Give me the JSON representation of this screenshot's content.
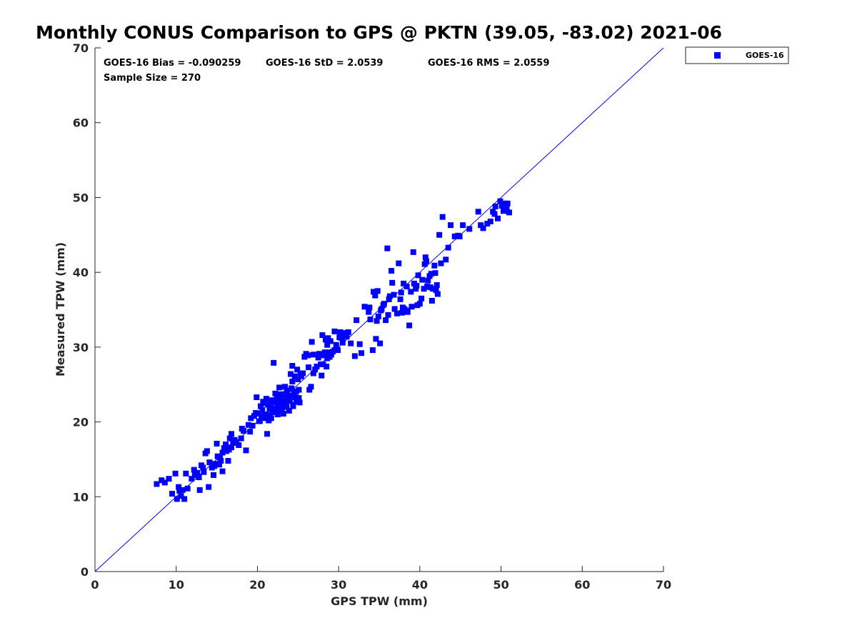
{
  "chart_data": {
    "type": "scatter",
    "title": "Monthly CONUS Comparison to GPS @ PKTN (39.05, -83.02) 2021-06",
    "xlabel": "GPS TPW (mm)",
    "ylabel": "Measured TPW (mm)",
    "xlim": [
      0,
      70
    ],
    "ylim": [
      0,
      70
    ],
    "xticks": [
      0,
      10,
      20,
      30,
      40,
      50,
      60,
      70
    ],
    "yticks": [
      0,
      10,
      20,
      30,
      40,
      50,
      60,
      70
    ],
    "grid": false,
    "legend_position": "outside-top-right",
    "reference_line": {
      "x": [
        0,
        70
      ],
      "y": [
        0,
        70
      ],
      "color": "#0000ff"
    },
    "annotations": {
      "bias": "GOES-16 Bias = -0.090259",
      "std": "GOES-16 StD = 2.0539",
      "rms": "GOES-16 RMS = 2.0559",
      "sample_size": "Sample Size = 270"
    },
    "series": [
      {
        "name": "GOES-16",
        "color": "#0000ff",
        "marker": "square",
        "points": [
          [
            7.6,
            11.7
          ],
          [
            8.2,
            12.2
          ],
          [
            8.6,
            11.9
          ],
          [
            9.1,
            12.4
          ],
          [
            9.5,
            10.4
          ],
          [
            9.9,
            13.1
          ],
          [
            10.1,
            9.7
          ],
          [
            10.3,
            11.3
          ],
          [
            10.6,
            10.1
          ],
          [
            10.8,
            10.9
          ],
          [
            11.0,
            9.7
          ],
          [
            11.2,
            13.1
          ],
          [
            11.9,
            12.4
          ],
          [
            12.2,
            13.6
          ],
          [
            12.6,
            13.2
          ],
          [
            12.9,
            10.9
          ],
          [
            13.1,
            14.2
          ],
          [
            13.4,
            13.3
          ],
          [
            13.6,
            15.8
          ],
          [
            13.8,
            16.1
          ],
          [
            14.0,
            11.3
          ],
          [
            14.1,
            14.6
          ],
          [
            14.4,
            13.9
          ],
          [
            14.6,
            12.9
          ],
          [
            14.8,
            14.4
          ],
          [
            15.0,
            17.1
          ],
          [
            15.1,
            15.4
          ],
          [
            15.3,
            14.3
          ],
          [
            15.5,
            14.8
          ],
          [
            15.7,
            13.4
          ],
          [
            15.9,
            16.5
          ],
          [
            16.1,
            17.0
          ],
          [
            16.2,
            16.1
          ],
          [
            16.4,
            14.8
          ],
          [
            16.5,
            16.3
          ],
          [
            16.6,
            17.8
          ],
          [
            16.8,
            18.4
          ],
          [
            17.0,
            17.2
          ],
          [
            17.4,
            17.3
          ],
          [
            17.7,
            16.9
          ],
          [
            18.1,
            19.1
          ],
          [
            18.6,
            16.2
          ],
          [
            18.9,
            19.6
          ],
          [
            19.1,
            18.7
          ],
          [
            19.4,
            19.5
          ],
          [
            19.6,
            20.8
          ],
          [
            19.9,
            23.3
          ],
          [
            20.1,
            21.1
          ],
          [
            20.3,
            20.1
          ],
          [
            20.4,
            22.1
          ],
          [
            20.6,
            21.6
          ],
          [
            20.7,
            22.7
          ],
          [
            20.9,
            21.0
          ],
          [
            21.0,
            20.5
          ],
          [
            21.1,
            23.1
          ],
          [
            21.2,
            18.4
          ],
          [
            21.3,
            22.3
          ],
          [
            21.5,
            21.7
          ],
          [
            21.7,
            20.5
          ],
          [
            21.8,
            22.9
          ],
          [
            21.9,
            21.3
          ],
          [
            22.0,
            27.9
          ],
          [
            22.2,
            23.8
          ],
          [
            22.3,
            22.6
          ],
          [
            22.4,
            21.4
          ],
          [
            22.5,
            21.0
          ],
          [
            22.6,
            23.5
          ],
          [
            22.7,
            22.2
          ],
          [
            22.8,
            22.8
          ],
          [
            22.9,
            21.8
          ],
          [
            23.0,
            23.2
          ],
          [
            23.1,
            22.4
          ],
          [
            23.2,
            21.1
          ],
          [
            23.3,
            23.7
          ],
          [
            23.4,
            24.7
          ],
          [
            23.5,
            22.5
          ],
          [
            23.6,
            22.0
          ],
          [
            23.7,
            24.2
          ],
          [
            23.8,
            23.1
          ],
          [
            23.9,
            21.5
          ],
          [
            24.0,
            22.8
          ],
          [
            24.1,
            26.4
          ],
          [
            24.2,
            23.5
          ],
          [
            24.3,
            27.5
          ],
          [
            24.4,
            22.3
          ],
          [
            24.5,
            24.0
          ],
          [
            24.6,
            26.1
          ],
          [
            24.7,
            23.3
          ],
          [
            24.8,
            22.7
          ],
          [
            24.9,
            27.0
          ],
          [
            25.0,
            25.7
          ],
          [
            25.1,
            23.2
          ],
          [
            25.2,
            22.6
          ],
          [
            25.3,
            26.5
          ],
          [
            25.4,
            26.1
          ],
          [
            25.6,
            26.5
          ],
          [
            25.8,
            28.7
          ],
          [
            26.0,
            29.1
          ],
          [
            26.2,
            28.9
          ],
          [
            26.4,
            24.3
          ],
          [
            26.6,
            24.7
          ],
          [
            26.7,
            30.7
          ],
          [
            26.9,
            29.0
          ],
          [
            27.1,
            27.0
          ],
          [
            27.3,
            27.4
          ],
          [
            27.5,
            28.6
          ],
          [
            27.6,
            29.1
          ],
          [
            27.8,
            28.9
          ],
          [
            27.9,
            26.2
          ],
          [
            28.0,
            31.6
          ],
          [
            28.1,
            27.7
          ],
          [
            28.2,
            29.0
          ],
          [
            28.3,
            29.3
          ],
          [
            28.4,
            31.0
          ],
          [
            28.5,
            27.4
          ],
          [
            28.6,
            30.3
          ],
          [
            28.7,
            31.2
          ],
          [
            28.8,
            29.3
          ],
          [
            28.9,
            28.7
          ],
          [
            29.0,
            30.8
          ],
          [
            29.1,
            29.0
          ],
          [
            29.3,
            29.4
          ],
          [
            29.5,
            32.1
          ],
          [
            29.7,
            30.3
          ],
          [
            29.9,
            29.6
          ],
          [
            30.1,
            31.3
          ],
          [
            30.2,
            32.0
          ],
          [
            30.5,
            30.6
          ],
          [
            30.7,
            31.9
          ],
          [
            31.0,
            31.4
          ],
          [
            32.2,
            33.6
          ],
          [
            32.6,
            30.4
          ],
          [
            32.8,
            29.2
          ],
          [
            32.0,
            28.8
          ],
          [
            33.2,
            35.4
          ],
          [
            33.8,
            35.3
          ],
          [
            34.2,
            29.6
          ],
          [
            34.3,
            37.4
          ],
          [
            34.6,
            31.1
          ],
          [
            34.7,
            33.5
          ],
          [
            34.9,
            34.1
          ],
          [
            35.1,
            30.5
          ],
          [
            35.2,
            34.9
          ],
          [
            35.5,
            35.6
          ],
          [
            35.8,
            33.6
          ],
          [
            36.0,
            43.2
          ],
          [
            36.1,
            34.3
          ],
          [
            36.3,
            36.8
          ],
          [
            36.5,
            40.2
          ],
          [
            36.6,
            38.6
          ],
          [
            36.9,
            35.1
          ],
          [
            37.2,
            34.5
          ],
          [
            37.4,
            41.2
          ],
          [
            37.6,
            36.4
          ],
          [
            37.7,
            37.3
          ],
          [
            37.8,
            34.6
          ],
          [
            38.1,
            35.1
          ],
          [
            38.3,
            34.9
          ],
          [
            38.5,
            34.7
          ],
          [
            38.7,
            32.9
          ],
          [
            38.9,
            37.4
          ],
          [
            39.0,
            35.4
          ],
          [
            39.2,
            42.7
          ],
          [
            39.3,
            38.5
          ],
          [
            39.5,
            37.8
          ],
          [
            39.7,
            35.6
          ],
          [
            40.0,
            35.8
          ],
          [
            40.3,
            39.0
          ],
          [
            40.5,
            37.8
          ],
          [
            40.6,
            41.1
          ],
          [
            40.7,
            42.0
          ],
          [
            40.9,
            38.1
          ],
          [
            41.0,
            38.9
          ],
          [
            41.2,
            39.5
          ],
          [
            41.3,
            38.0
          ],
          [
            41.5,
            36.2
          ],
          [
            41.6,
            37.8
          ],
          [
            41.8,
            40.9
          ],
          [
            42.0,
            37.6
          ],
          [
            42.1,
            38.3
          ],
          [
            42.2,
            37.1
          ],
          [
            42.4,
            45.0
          ],
          [
            42.8,
            47.4
          ],
          [
            43.2,
            41.7
          ],
          [
            43.8,
            46.3
          ],
          [
            44.3,
            44.8
          ],
          [
            44.9,
            44.8
          ],
          [
            45.3,
            46.3
          ],
          [
            47.2,
            48.1
          ],
          [
            47.5,
            46.3
          ],
          [
            47.8,
            45.9
          ],
          [
            48.3,
            46.5
          ],
          [
            48.7,
            46.8
          ],
          [
            49.0,
            48.1
          ],
          [
            49.3,
            48.8
          ],
          [
            49.6,
            47.2
          ],
          [
            49.9,
            49.5
          ],
          [
            50.1,
            48.9
          ],
          [
            50.5,
            49.2
          ],
          [
            50.7,
            48.6
          ],
          [
            51.0,
            48.0
          ],
          [
            50.3,
            48.2
          ],
          [
            49.2,
            47.8
          ],
          [
            34.5,
            36.9
          ],
          [
            34.8,
            37.5
          ],
          [
            35.3,
            35.1
          ],
          [
            37.9,
            35.3
          ],
          [
            39.6,
            38.2
          ],
          [
            40.2,
            36.5
          ],
          [
            41.4,
            39.8
          ],
          [
            22.1,
            22.9
          ],
          [
            22.8,
            23.7
          ],
          [
            23.6,
            23.9
          ],
          [
            24.4,
            22.1
          ],
          [
            23.0,
            21.6
          ],
          [
            21.4,
            20.2
          ],
          [
            20.8,
            22.5
          ],
          [
            19.8,
            21.2
          ],
          [
            24.2,
            24.5
          ],
          [
            25.1,
            24.3
          ],
          [
            23.3,
            22.9
          ],
          [
            22.6,
            22.1
          ],
          [
            21.9,
            21.8
          ],
          [
            21.6,
            22.5
          ],
          [
            24.8,
            24.1
          ],
          [
            23.9,
            23.4
          ],
          [
            22.4,
            23.3
          ],
          [
            20.5,
            20.8
          ],
          [
            21.5,
            20.9
          ],
          [
            25.0,
            23.1
          ],
          [
            16.8,
            16.6
          ],
          [
            17.2,
            17.6
          ],
          [
            14.7,
            14.1
          ],
          [
            13.3,
            13.9
          ],
          [
            12.3,
            12.9
          ],
          [
            15.7,
            15.9
          ],
          [
            18.3,
            18.8
          ],
          [
            19.2,
            20.5
          ],
          [
            26.3,
            27.3
          ],
          [
            27.8,
            27.7
          ],
          [
            28.6,
            28.5
          ],
          [
            29.5,
            29.6
          ],
          [
            30.4,
            31.2
          ],
          [
            31.5,
            30.5
          ],
          [
            33.7,
            34.7
          ],
          [
            35.6,
            35.8
          ],
          [
            36.8,
            37.0
          ],
          [
            38.4,
            38.1
          ],
          [
            39.8,
            39.6
          ],
          [
            40.8,
            41.5
          ],
          [
            41.9,
            39.9
          ],
          [
            42.6,
            41.2
          ],
          [
            43.5,
            43.3
          ],
          [
            44.7,
            44.9
          ],
          [
            46.1,
            45.8
          ],
          [
            10.4,
            10.8
          ],
          [
            11.4,
            11.1
          ],
          [
            12.8,
            12.6
          ],
          [
            15.4,
            15.2
          ],
          [
            18.0,
            17.8
          ],
          [
            20.2,
            20.1
          ],
          [
            22.7,
            24.6
          ],
          [
            24.3,
            25.4
          ],
          [
            26.9,
            26.5
          ],
          [
            28.3,
            28.9
          ],
          [
            31.2,
            32.0
          ],
          [
            33.9,
            33.7
          ],
          [
            36.2,
            36.4
          ],
          [
            38.0,
            38.5
          ],
          [
            50.8,
            49.2
          ]
        ]
      }
    ]
  }
}
